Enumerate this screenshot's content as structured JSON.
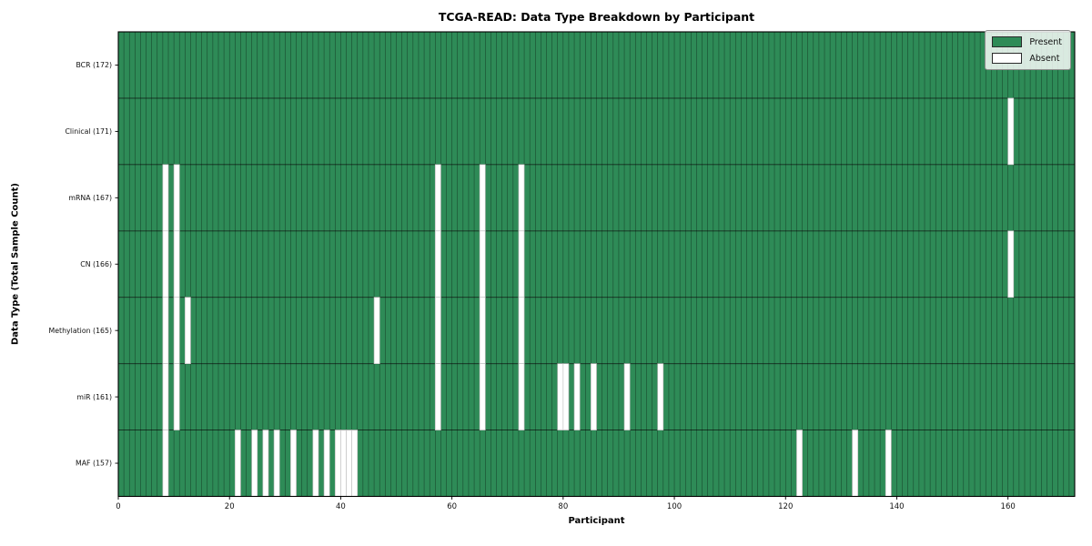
{
  "chart_data": {
    "type": "heatmap",
    "title": "TCGA-READ: Data Type Breakdown by Participant",
    "xlabel": "Participant",
    "ylabel": "Data Type (Total Sample Count)",
    "n_participants": 172,
    "x_ticks": [
      0,
      20,
      40,
      60,
      80,
      100,
      120,
      140,
      160
    ],
    "rows": [
      {
        "label": "BCR (172)",
        "data_type": "BCR",
        "present_count": 172,
        "absent_participants": []
      },
      {
        "label": "Clinical (171)",
        "data_type": "Clinical",
        "present_count": 171,
        "absent_participants": [
          160
        ]
      },
      {
        "label": "mRNA (167)",
        "data_type": "mRNA",
        "present_count": 167,
        "absent_participants": [
          8,
          10,
          57,
          65,
          72
        ]
      },
      {
        "label": "CN (166)",
        "data_type": "CN",
        "present_count": 166,
        "absent_participants": [
          8,
          10,
          57,
          65,
          72,
          160
        ]
      },
      {
        "label": "Methylation (165)",
        "data_type": "Methylation",
        "present_count": 165,
        "absent_participants": [
          8,
          10,
          12,
          46,
          57,
          65,
          72
        ]
      },
      {
        "label": "miR (161)",
        "data_type": "miR",
        "present_count": 161,
        "absent_participants": [
          8,
          10,
          57,
          65,
          72,
          79,
          80,
          82,
          85,
          91,
          97
        ]
      },
      {
        "label": "MAF (157)",
        "data_type": "MAF",
        "present_count": 157,
        "absent_participants": [
          8,
          21,
          24,
          26,
          28,
          31,
          35,
          37,
          39,
          40,
          41,
          42,
          122,
          132,
          138
        ]
      }
    ],
    "legend": {
      "position": "upper-right",
      "items": [
        {
          "label": "Present",
          "color": "#2e8b57"
        },
        {
          "label": "Absent",
          "color": "#ffffff"
        }
      ]
    },
    "colors": {
      "present": "#2e8b57",
      "absent": "#ffffff",
      "grid_vertical": "rgba(0,0,0,0.5)",
      "row_divider": "rgba(0,0,0,0.72)",
      "border": "#000000"
    },
    "grid": "on",
    "x_range": [
      0,
      172
    ]
  }
}
